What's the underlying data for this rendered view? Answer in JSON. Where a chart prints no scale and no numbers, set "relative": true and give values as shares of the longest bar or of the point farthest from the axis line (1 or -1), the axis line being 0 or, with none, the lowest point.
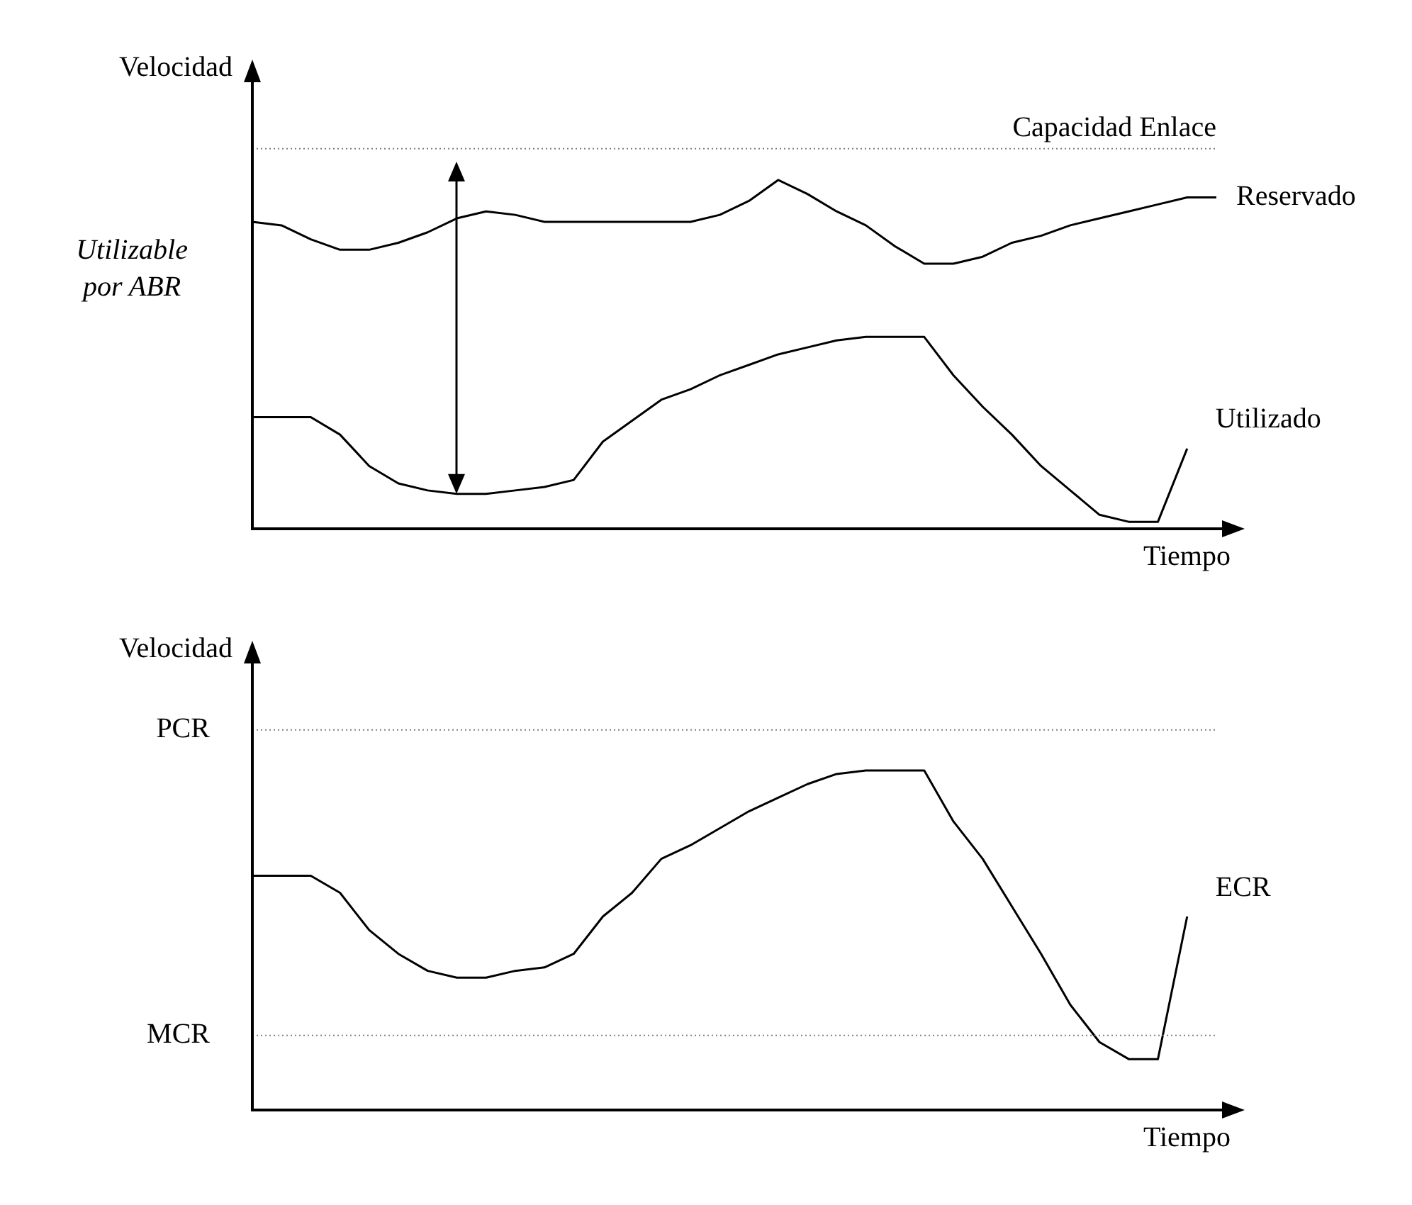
{
  "chart_data": [
    {
      "type": "line",
      "relative": true,
      "xlabel": "Tiempo",
      "ylabel": "Velocidad",
      "tick_labels": false,
      "categories": [
        null,
        null,
        null,
        null,
        null,
        null,
        null,
        null,
        null,
        null,
        null,
        null,
        null,
        null,
        null,
        null,
        null,
        null,
        null,
        null,
        null,
        null,
        null,
        null,
        null,
        null,
        null,
        null,
        null,
        null,
        null,
        null,
        null,
        null
      ],
      "series": [
        {
          "name": "Reservado",
          "color": "#000000",
          "values": [
            0.88,
            0.87,
            0.83,
            0.8,
            0.8,
            0.82,
            0.85,
            0.89,
            0.91,
            0.9,
            0.88,
            0.88,
            0.88,
            0.88,
            0.88,
            0.88,
            0.9,
            0.94,
            1.0,
            0.96,
            0.91,
            0.87,
            0.81,
            0.76,
            0.76,
            0.78,
            0.82,
            0.84,
            0.87,
            0.89,
            0.91,
            0.93,
            0.95,
            0.95
          ]
        },
        {
          "name": "Utilizado",
          "color": "#000000",
          "values": [
            0.32,
            0.32,
            0.32,
            0.27,
            0.18,
            0.13,
            0.11,
            0.1,
            0.1,
            0.11,
            0.12,
            0.14,
            0.25,
            0.31,
            0.37,
            0.4,
            0.44,
            0.47,
            0.5,
            0.52,
            0.54,
            0.55,
            0.55,
            0.55,
            0.44,
            0.35,
            0.27,
            0.18,
            0.11,
            0.04,
            0.02,
            0.02,
            0.23,
            null
          ]
        }
      ],
      "ref_lines": [
        {
          "axis": "y",
          "value": 1.09,
          "label": "Capacidad Enlace",
          "color": "#808080",
          "line_style": "dotted"
        }
      ],
      "annotations": [
        "Utilizable por ABR"
      ]
    },
    {
      "type": "line",
      "relative": true,
      "xlabel": "Tiempo",
      "ylabel": "Velocidad",
      "tick_labels": false,
      "categories": [
        null,
        null,
        null,
        null,
        null,
        null,
        null,
        null,
        null,
        null,
        null,
        null,
        null,
        null,
        null,
        null,
        null,
        null,
        null,
        null,
        null,
        null,
        null,
        null,
        null,
        null,
        null,
        null,
        null,
        null,
        null,
        null,
        null,
        null
      ],
      "series": [
        {
          "name": "ECR",
          "color": "#000000",
          "values": [
            0.69,
            0.69,
            0.69,
            0.64,
            0.53,
            0.46,
            0.41,
            0.39,
            0.39,
            0.41,
            0.42,
            0.46,
            0.57,
            0.64,
            0.74,
            0.78,
            0.83,
            0.88,
            0.92,
            0.96,
            0.99,
            1.0,
            1.0,
            1.0,
            0.85,
            0.74,
            0.6,
            0.46,
            0.31,
            0.2,
            0.15,
            0.15,
            0.57,
            null
          ]
        }
      ],
      "ref_lines": [
        {
          "axis": "y",
          "value": 1.12,
          "label": "PCR",
          "color": "#808080",
          "line_style": "dotted"
        },
        {
          "axis": "y",
          "value": 0.22,
          "label": "MCR",
          "color": "#808080",
          "line_style": "dotted"
        }
      ]
    }
  ]
}
